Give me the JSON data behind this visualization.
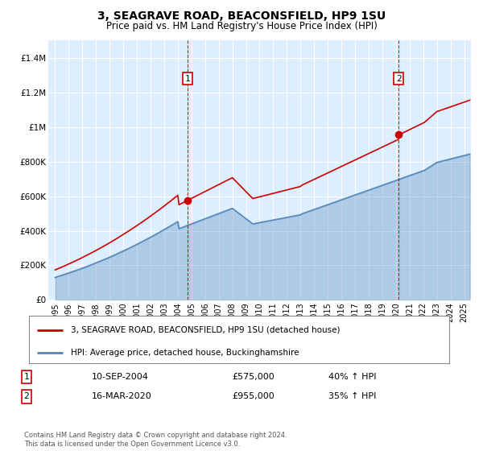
{
  "title": "3, SEAGRAVE ROAD, BEACONSFIELD, HP9 1SU",
  "subtitle": "Price paid vs. HM Land Registry's House Price Index (HPI)",
  "legend_entry1": "3, SEAGRAVE ROAD, BEACONSFIELD, HP9 1SU (detached house)",
  "legend_entry2": "HPI: Average price, detached house, Buckinghamshire",
  "transaction1_label": "1",
  "transaction1_date": "10-SEP-2004",
  "transaction1_price": "£575,000",
  "transaction1_hpi": "40% ↑ HPI",
  "transaction1_year": 2004.7,
  "transaction1_value": 575000,
  "transaction2_label": "2",
  "transaction2_date": "16-MAR-2020",
  "transaction2_price": "£955,000",
  "transaction2_hpi": "35% ↑ HPI",
  "transaction2_year": 2020.2,
  "transaction2_value": 955000,
  "footer": "Contains HM Land Registry data © Crown copyright and database right 2024.\nThis data is licensed under the Open Government Licence v3.0.",
  "line_color_red": "#cc0000",
  "line_color_blue": "#5588bb",
  "background_color": "#ddeeff",
  "ylim": [
    0,
    1500000
  ],
  "xlim_start": 1994.5,
  "xlim_end": 2025.5,
  "yticks": [
    0,
    200000,
    400000,
    600000,
    800000,
    1000000,
    1200000,
    1400000
  ],
  "ytick_labels": [
    "£0",
    "£200K",
    "£400K",
    "£600K",
    "£800K",
    "£1M",
    "£1.2M",
    "£1.4M"
  ],
  "xticks": [
    1995,
    1996,
    1997,
    1998,
    1999,
    2000,
    2001,
    2002,
    2003,
    2004,
    2005,
    2006,
    2007,
    2008,
    2009,
    2010,
    2011,
    2012,
    2013,
    2014,
    2015,
    2016,
    2017,
    2018,
    2019,
    2020,
    2021,
    2022,
    2023,
    2024,
    2025
  ]
}
